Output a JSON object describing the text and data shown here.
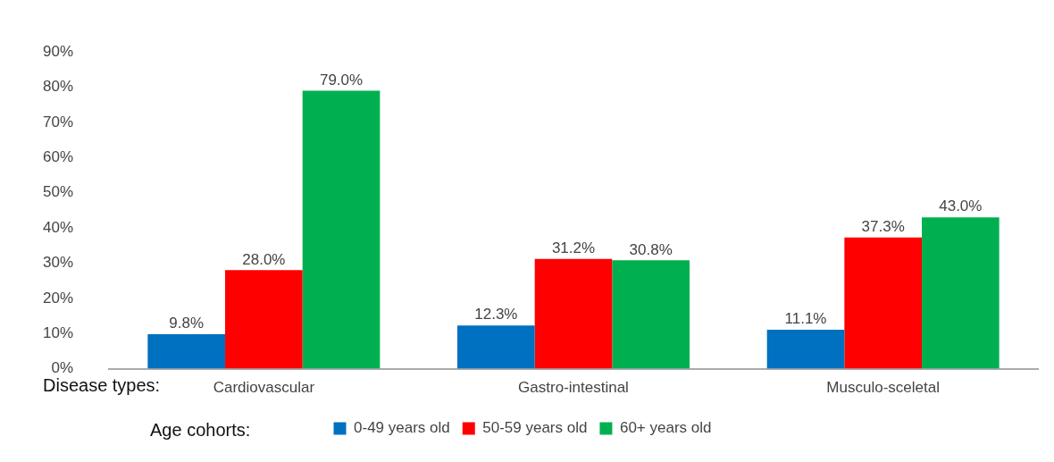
{
  "chart_data": {
    "type": "bar",
    "categories": [
      "Cardiovascular",
      "Gastro-intestinal",
      "Musculo-sceletal"
    ],
    "series": [
      {
        "name": "0-49 years old",
        "color": "#0070c0",
        "values": [
          9.8,
          12.3,
          11.1
        ],
        "value_labels": [
          "9.8%",
          "12.3%",
          "11.1%"
        ]
      },
      {
        "name": "50-59 years old",
        "color": "#ff0000",
        "values": [
          28.0,
          31.2,
          37.3
        ],
        "value_labels": [
          "28.0%",
          "31.2%",
          "37.3%"
        ]
      },
      {
        "name": "60+ years old",
        "color": "#00b050",
        "values": [
          79.0,
          30.8,
          43.0
        ],
        "value_labels": [
          "79.0%",
          "30.8%",
          "43.0%"
        ]
      }
    ],
    "ylim": [
      0,
      90
    ],
    "yticks": [
      {
        "value": 0,
        "label": "0%"
      },
      {
        "value": 10,
        "label": "10%"
      },
      {
        "value": 20,
        "label": "20%"
      },
      {
        "value": 30,
        "label": "30%"
      },
      {
        "value": 40,
        "label": "40%"
      },
      {
        "value": 50,
        "label": "50%"
      },
      {
        "value": 60,
        "label": "60%"
      },
      {
        "value": 70,
        "label": "70%"
      },
      {
        "value": 80,
        "label": "80%"
      },
      {
        "value": 90,
        "label": "90%"
      }
    ],
    "grid": false,
    "legend": "bottom",
    "annotations": [
      "Disease types:",
      "Age cohorts:"
    ]
  }
}
